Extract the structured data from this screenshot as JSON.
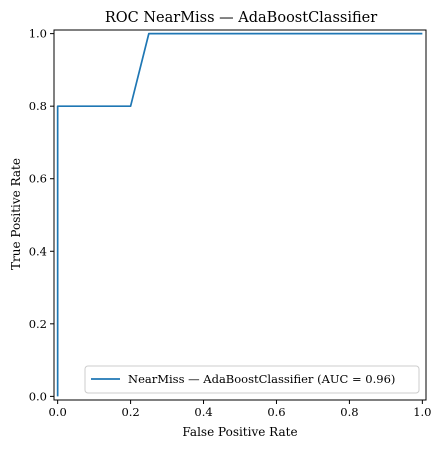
{
  "chart_data": {
    "type": "line",
    "title": "ROC NearMiss — AdaBoostClassifier",
    "xlabel": "False Positive Rate",
    "ylabel": "True Positive Rate",
    "xlim": [
      -0.01,
      1.01
    ],
    "ylim": [
      -0.01,
      1.01
    ],
    "xticks": [
      0.0,
      0.2,
      0.4,
      0.6,
      0.8,
      1.0
    ],
    "yticks": [
      0.0,
      0.2,
      0.4,
      0.6,
      0.8,
      1.0
    ],
    "xtick_labels": [
      "0.0",
      "0.2",
      "0.4",
      "0.6",
      "0.8",
      "1.0"
    ],
    "ytick_labels": [
      "0.0",
      "0.2",
      "0.4",
      "0.6",
      "0.8",
      "1.0"
    ],
    "grid": false,
    "legend_position": "lower-right",
    "series": [
      {
        "name": "NearMiss — AdaBoostClassifier (AUC = 0.96)",
        "color": "#1f77b4",
        "x": [
          0.0,
          0.0,
          0.0,
          0.2,
          0.25,
          1.0
        ],
        "y": [
          0.0,
          0.0,
          0.8,
          0.8,
          1.0,
          1.0
        ]
      }
    ]
  }
}
